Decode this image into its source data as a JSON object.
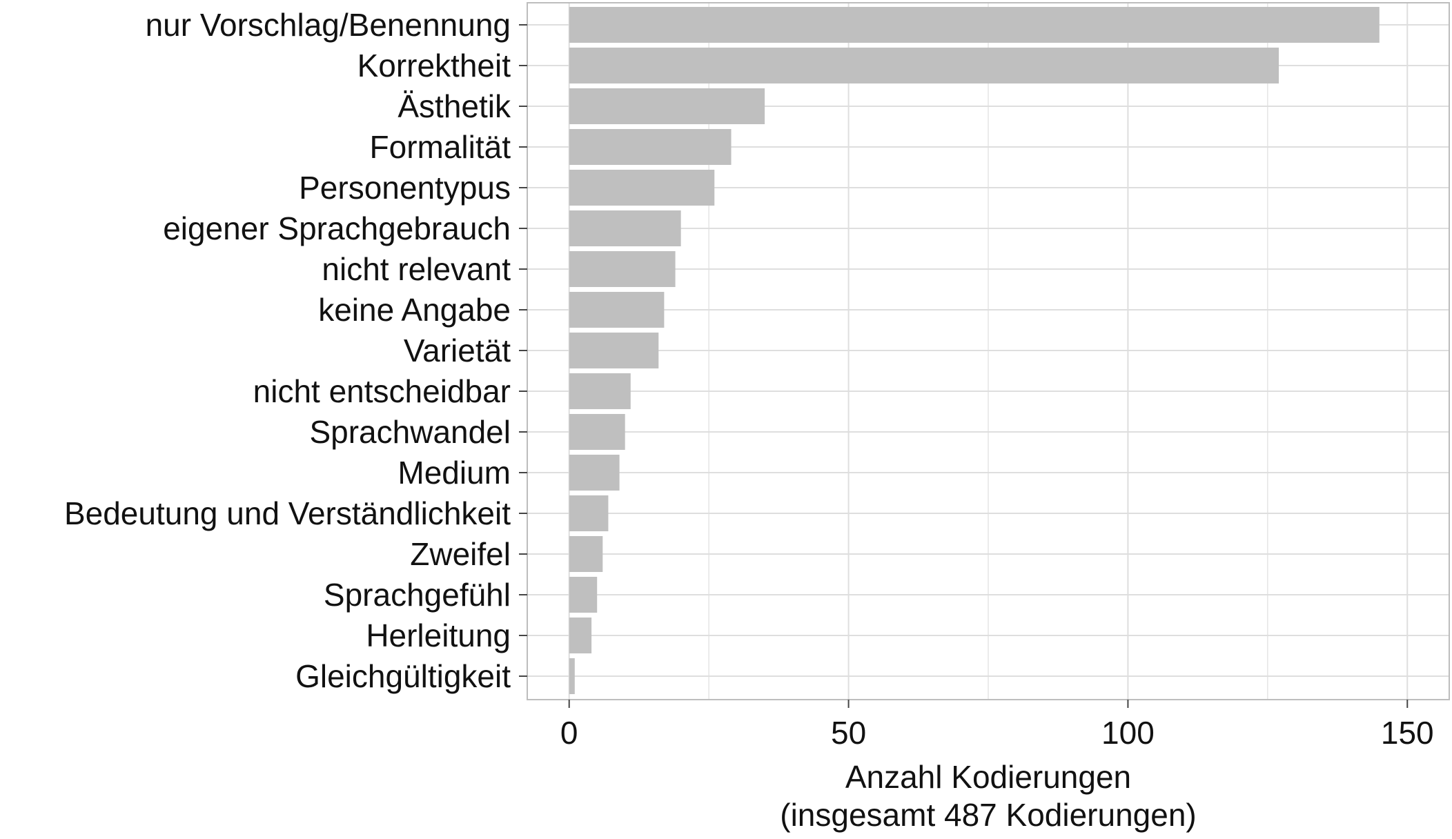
{
  "chart_data": {
    "type": "bar",
    "orientation": "horizontal",
    "categories": [
      "nur Vorschlag/Benennung",
      "Korrektheit",
      "Ästhetik",
      "Formalität",
      "Personentypus",
      "eigener Sprachgebrauch",
      "nicht relevant",
      "keine Angabe",
      "Varietät",
      "nicht entscheidbar",
      "Sprachwandel",
      "Medium",
      "Bedeutung und Verständlichkeit",
      "Zweifel",
      "Sprachgefühl",
      "Herleitung",
      "Gleichgültigkeit"
    ],
    "values": [
      145,
      127,
      35,
      29,
      26,
      20,
      19,
      17,
      16,
      11,
      10,
      9,
      7,
      6,
      5,
      4,
      1
    ],
    "xlabel_line1": "Anzahl Kodierungen",
    "xlabel_line2": "(insgesamt 487 Kodierungen)",
    "ylabel": "",
    "title": "",
    "xlim": [
      -7.5,
      157.5
    ],
    "x_ticks": [
      0,
      50,
      100,
      150
    ],
    "x_tick_labels": [
      "0",
      "50",
      "100",
      "150"
    ],
    "grid": true,
    "bar_color": "#bfbfbf",
    "grid_color": "#dedede",
    "panel_border_color": "#bdbdbd",
    "legend": "none"
  }
}
